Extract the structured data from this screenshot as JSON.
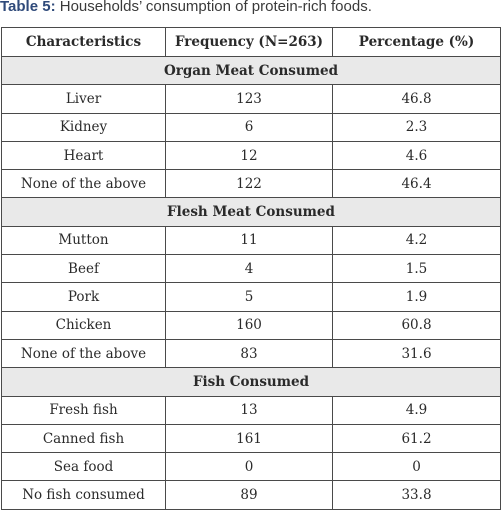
{
  "caption": {
    "label": "Table 5:",
    "text": " Households’ consumption of protein-rich foods."
  },
  "table": {
    "headers": [
      "Characteristics",
      "Frequency (N=263)",
      "Percentage (%)"
    ],
    "sections": [
      {
        "title": "Organ Meat Consumed",
        "rows": [
          [
            "Liver",
            "123",
            "46.8"
          ],
          [
            "Kidney",
            "6",
            "2.3"
          ],
          [
            "Heart",
            "12",
            "4.6"
          ],
          [
            "None of the above",
            "122",
            "46.4"
          ]
        ]
      },
      {
        "title": "Flesh Meat Consumed",
        "rows": [
          [
            "Mutton",
            "11",
            "4.2"
          ],
          [
            "Beef",
            "4",
            "1.5"
          ],
          [
            "Pork",
            "5",
            "1.9"
          ],
          [
            "Chicken",
            "160",
            "60.8"
          ],
          [
            "None of the above",
            "83",
            "31.6"
          ]
        ]
      },
      {
        "title": "Fish Consumed",
        "rows": [
          [
            "Fresh fish",
            "13",
            "4.9"
          ],
          [
            "Canned fish",
            "161",
            "61.2"
          ],
          [
            "Sea food",
            "0",
            "0"
          ],
          [
            "No fish consumed",
            "89",
            "33.8"
          ]
        ]
      }
    ]
  },
  "colors": {
    "caption_label": "#2f4a7a",
    "section_background": "#e9e9e9",
    "border": "#4a4a4a"
  }
}
